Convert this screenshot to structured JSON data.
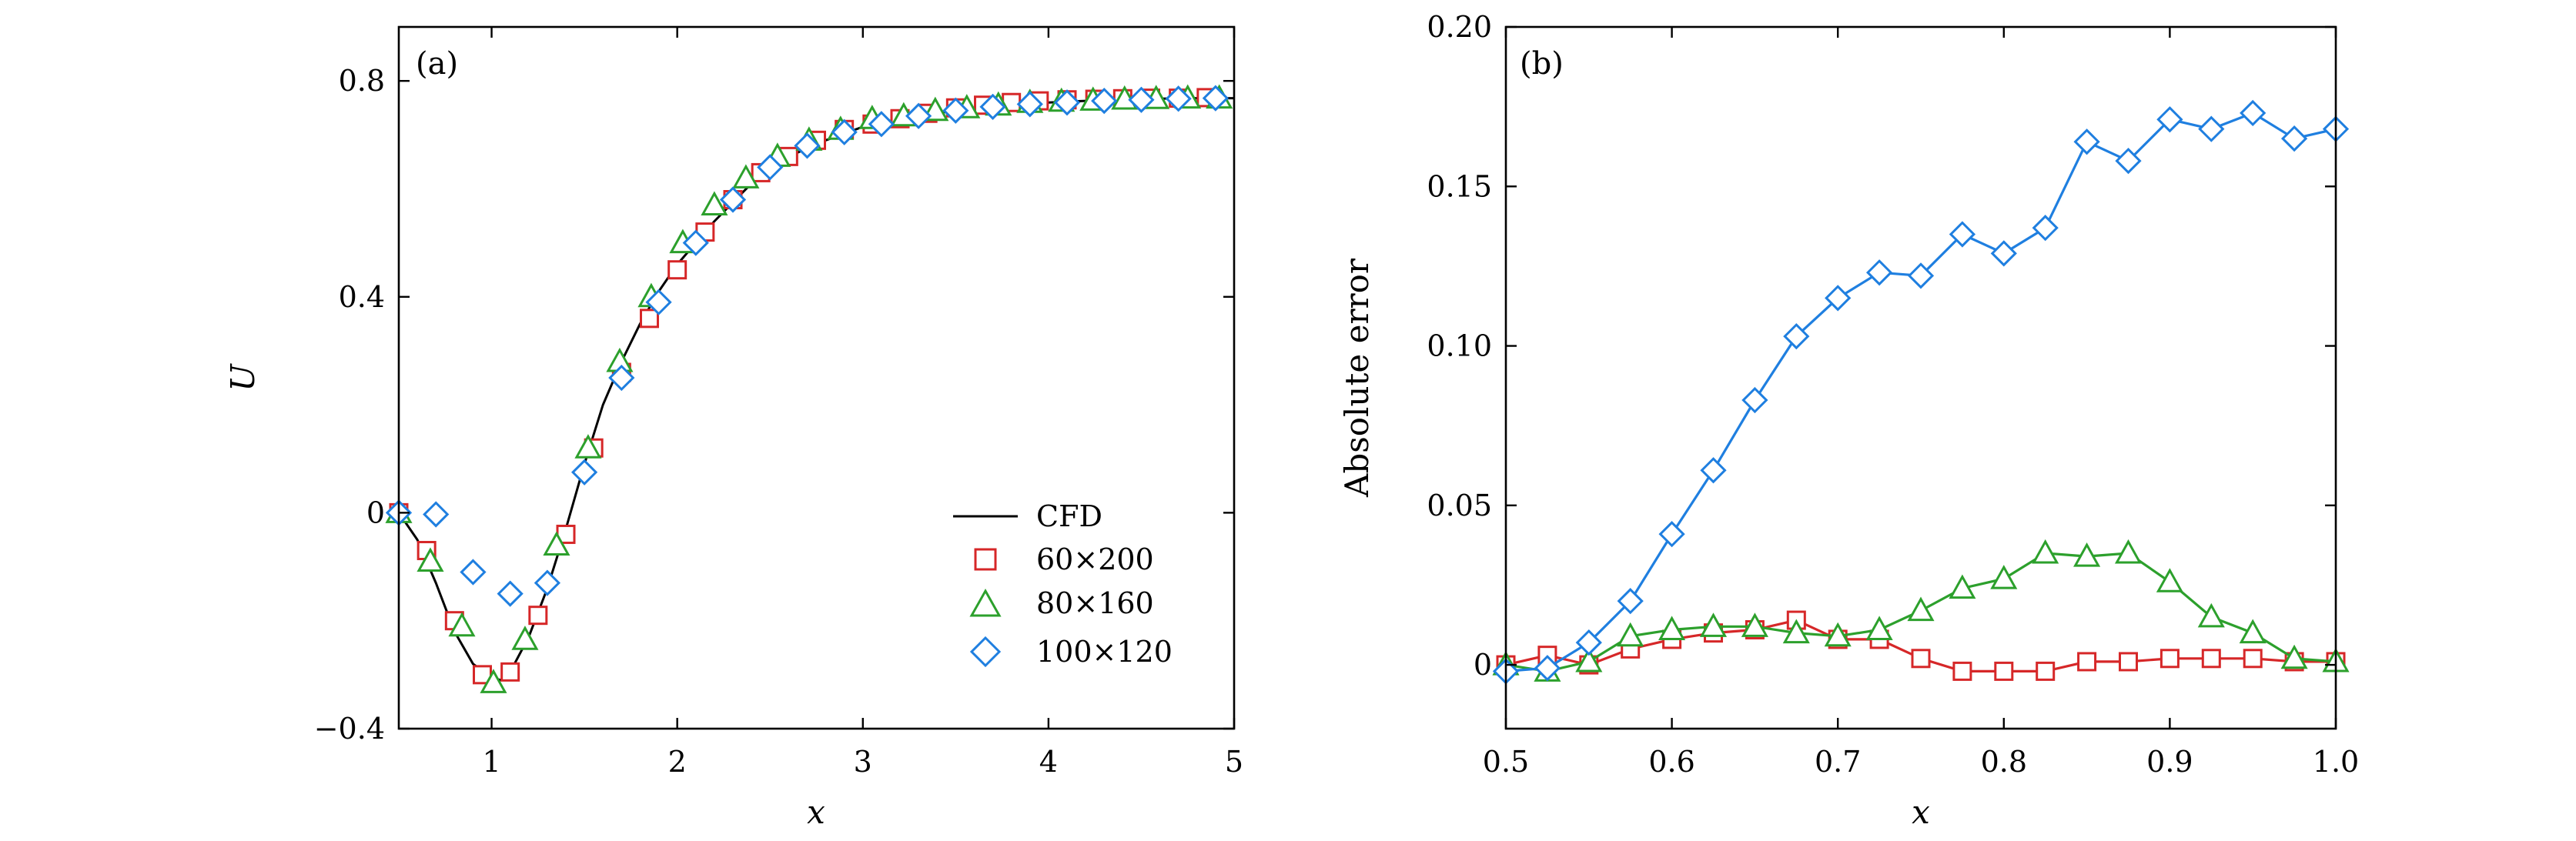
{
  "chart_data": [
    {
      "panel": "(a)",
      "type": "line",
      "xlabel": "x",
      "ylabel": "U",
      "xlim": [
        0.5,
        5
      ],
      "ylim": [
        -0.4,
        0.9
      ],
      "xticks": [
        1,
        2,
        3,
        4,
        5
      ],
      "xtick_labels": [
        "1",
        "2",
        "3",
        "4",
        "5"
      ],
      "yticks": [
        -0.4,
        0,
        0.4,
        0.8
      ],
      "ytick_labels": [
        "−0.4",
        "0",
        "0.4",
        "0.8"
      ],
      "legend_position": "bottom-right",
      "series": [
        {
          "name": "CFD",
          "marker": "line",
          "color": "#000000",
          "x": [
            0.5,
            0.6,
            0.7,
            0.8,
            0.9,
            1.0,
            1.05,
            1.1,
            1.2,
            1.3,
            1.4,
            1.5,
            1.6,
            1.7,
            1.8,
            1.9,
            2.0,
            2.2,
            2.4,
            2.6,
            2.8,
            3.0,
            3.2,
            3.4,
            3.6,
            3.8,
            4.0,
            4.2,
            4.4,
            4.6,
            4.8,
            5.0
          ],
          "y": [
            0.0,
            -0.05,
            -0.13,
            -0.22,
            -0.28,
            -0.305,
            -0.31,
            -0.295,
            -0.23,
            -0.14,
            -0.03,
            0.09,
            0.2,
            0.28,
            0.35,
            0.41,
            0.46,
            0.54,
            0.61,
            0.66,
            0.69,
            0.715,
            0.73,
            0.74,
            0.75,
            0.755,
            0.76,
            0.763,
            0.765,
            0.767,
            0.768,
            0.768
          ]
        },
        {
          "name": "60×200",
          "marker": "square",
          "color": "#d62728",
          "x": [
            0.5,
            0.65,
            0.8,
            0.95,
            1.1,
            1.25,
            1.4,
            1.55,
            1.7,
            1.85,
            2.0,
            2.15,
            2.3,
            2.45,
            2.6,
            2.75,
            2.9,
            3.05,
            3.2,
            3.35,
            3.5,
            3.65,
            3.8,
            3.95,
            4.1,
            4.25,
            4.4,
            4.55,
            4.7,
            4.85
          ],
          "y": [
            0.0,
            -0.07,
            -0.2,
            -0.3,
            -0.295,
            -0.19,
            -0.04,
            0.12,
            0.26,
            0.36,
            0.45,
            0.52,
            0.58,
            0.63,
            0.66,
            0.69,
            0.71,
            0.72,
            0.73,
            0.74,
            0.75,
            0.755,
            0.76,
            0.763,
            0.765,
            0.766,
            0.767,
            0.768,
            0.768,
            0.769
          ]
        },
        {
          "name": "80×160",
          "marker": "triangle",
          "color": "#2ca02c",
          "x": [
            0.5,
            0.67,
            0.84,
            1.01,
            1.18,
            1.35,
            1.52,
            1.69,
            1.86,
            2.03,
            2.2,
            2.37,
            2.54,
            2.71,
            2.88,
            3.05,
            3.22,
            3.39,
            3.56,
            3.73,
            3.9,
            4.07,
            4.24,
            4.41,
            4.58,
            4.75,
            4.92
          ],
          "y": [
            0.0,
            -0.09,
            -0.21,
            -0.315,
            -0.235,
            -0.06,
            0.12,
            0.28,
            0.4,
            0.5,
            0.57,
            0.62,
            0.66,
            0.69,
            0.71,
            0.73,
            0.735,
            0.745,
            0.75,
            0.755,
            0.76,
            0.762,
            0.764,
            0.766,
            0.767,
            0.768,
            0.768
          ]
        },
        {
          "name": "100×120",
          "marker": "diamond",
          "color": "#1f7fe0",
          "x": [
            0.5,
            0.7,
            0.9,
            1.1,
            1.3,
            1.5,
            1.7,
            1.9,
            2.1,
            2.3,
            2.5,
            2.7,
            2.9,
            3.1,
            3.3,
            3.5,
            3.7,
            3.9,
            4.1,
            4.3,
            4.5,
            4.7,
            4.9
          ],
          "y": [
            0.0,
            -0.003,
            -0.11,
            -0.15,
            -0.13,
            0.075,
            0.25,
            0.39,
            0.5,
            0.58,
            0.64,
            0.68,
            0.705,
            0.72,
            0.735,
            0.745,
            0.752,
            0.757,
            0.76,
            0.763,
            0.765,
            0.767,
            0.768
          ]
        }
      ],
      "legend": [
        "CFD",
        "60×200",
        "80×160",
        "100×120"
      ]
    },
    {
      "panel": "(b)",
      "type": "line",
      "xlabel": "x",
      "ylabel": "Absolute error",
      "xlim": [
        0.5,
        1.0
      ],
      "ylim": [
        -0.02,
        0.2
      ],
      "xticks": [
        0.5,
        0.6,
        0.7,
        0.8,
        0.9,
        1.0
      ],
      "xtick_labels": [
        "0.5",
        "0.6",
        "0.7",
        "0.8",
        "0.9",
        "1.0"
      ],
      "yticks": [
        0,
        0.05,
        0.1,
        0.15,
        0.2
      ],
      "ytick_labels": [
        "0",
        "0.05",
        "0.10",
        "0.15",
        "0.20"
      ],
      "series": [
        {
          "name": "60×200",
          "marker": "square",
          "color": "#d62728",
          "x": [
            0.5,
            0.525,
            0.55,
            0.575,
            0.6,
            0.625,
            0.65,
            0.675,
            0.7,
            0.725,
            0.75,
            0.775,
            0.8,
            0.825,
            0.85,
            0.875,
            0.9,
            0.925,
            0.95,
            0.975,
            1.0
          ],
          "y": [
            0.0,
            0.003,
            0.0,
            0.005,
            0.008,
            0.01,
            0.011,
            0.014,
            0.008,
            0.008,
            0.002,
            -0.002,
            -0.002,
            -0.002,
            0.001,
            0.001,
            0.002,
            0.002,
            0.002,
            0.001,
            0.001
          ]
        },
        {
          "name": "80×160",
          "marker": "triangle",
          "color": "#2ca02c",
          "x": [
            0.5,
            0.525,
            0.55,
            0.575,
            0.6,
            0.625,
            0.65,
            0.675,
            0.7,
            0.725,
            0.75,
            0.775,
            0.8,
            0.825,
            0.85,
            0.875,
            0.9,
            0.925,
            0.95,
            0.975,
            1.0
          ],
          "y": [
            0.0,
            -0.002,
            0.001,
            0.009,
            0.011,
            0.012,
            0.012,
            0.01,
            0.009,
            0.011,
            0.017,
            0.024,
            0.027,
            0.035,
            0.034,
            0.035,
            0.026,
            0.015,
            0.01,
            0.002,
            0.001
          ]
        },
        {
          "name": "100×120",
          "marker": "diamond",
          "color": "#1f7fe0",
          "x": [
            0.5,
            0.525,
            0.55,
            0.575,
            0.6,
            0.625,
            0.65,
            0.675,
            0.7,
            0.725,
            0.75,
            0.775,
            0.8,
            0.825,
            0.85,
            0.875,
            0.9,
            0.925,
            0.95,
            0.975,
            1.0
          ],
          "y": [
            -0.002,
            -0.001,
            0.007,
            0.02,
            0.041,
            0.061,
            0.083,
            0.103,
            0.115,
            0.123,
            0.122,
            0.135,
            0.129,
            0.137,
            0.164,
            0.158,
            0.171,
            0.168,
            0.173,
            0.165,
            0.168
          ]
        }
      ]
    }
  ]
}
